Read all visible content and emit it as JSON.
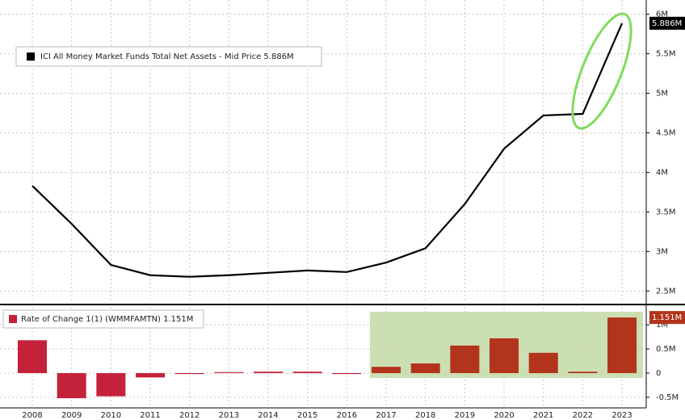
{
  "chart_data": [
    {
      "type": "line",
      "values": [
        3.83,
        3.35,
        2.83,
        2.7,
        2.68,
        2.7,
        2.73,
        2.76,
        2.74,
        2.86,
        3.04,
        3.6,
        4.3,
        4.72,
        4.74,
        5.886
      ],
      "value_labels": [
        null,
        null,
        null,
        null,
        null,
        null,
        null,
        null,
        null,
        null,
        null,
        null,
        null,
        null,
        null,
        "5.886M"
      ],
      "series_name": "ICI All Money Market Funds Total Net Assets - Mid Price 5.886M",
      "color": "#000000",
      "ylim": [
        2.35,
        6.18
      ],
      "yticks": [
        {
          "value": 2.5,
          "label": "2.5M"
        },
        {
          "value": 3,
          "label": "3M"
        },
        {
          "value": 3.5,
          "label": "3.5M"
        },
        {
          "value": 4,
          "label": "4M"
        },
        {
          "value": 4.5,
          "label": "4.5M"
        },
        {
          "value": 5,
          "label": "5M"
        },
        {
          "value": 5.5,
          "label": "5.5M"
        },
        {
          "value": 6,
          "label": "6M"
        }
      ],
      "grid": true
    },
    {
      "type": "bar",
      "categories": [
        "2008",
        "2009",
        "2010",
        "2011",
        "2012",
        "2013",
        "2014",
        "2015",
        "2016",
        "2017",
        "2018",
        "2019",
        "2020",
        "2021",
        "2022",
        "2023"
      ],
      "values": [
        0.68,
        -0.52,
        -0.48,
        -0.09,
        -0.02,
        0.02,
        0.03,
        0.03,
        -0.02,
        0.13,
        0.2,
        0.57,
        0.72,
        0.42,
        0.03,
        1.151
      ],
      "value_labels": [
        null,
        null,
        null,
        null,
        null,
        null,
        null,
        null,
        null,
        null,
        null,
        null,
        null,
        null,
        null,
        "1.151M"
      ],
      "series_name": "Rate of Change 1(1) (WMMFAMTN) 1.151M",
      "colors": [
        "#c4223a",
        "#c4223a",
        "#c4223a",
        "#c4223a",
        "#c4223a",
        "#c4223a",
        "#c4223a",
        "#c4223a",
        "#c4223a",
        "#b2341c",
        "#b2341c",
        "#b2341c",
        "#b2341c",
        "#b2341c",
        "#b2341c",
        "#b2341c"
      ],
      "ylim": [
        -0.72,
        1.37
      ],
      "yticks": [
        {
          "value": -0.5,
          "label": "-0.5M"
        },
        0,
        {
          "value": 0.5,
          "label": "0.5M"
        },
        {
          "value": 1,
          "label": "1M"
        }
      ],
      "grid": true
    }
  ]
}
